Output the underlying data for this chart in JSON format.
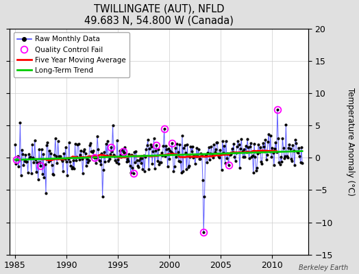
{
  "title": "TWILLINGATE (AUT), NFLD",
  "subtitle": "49.683 N, 54.800 W (Canada)",
  "ylabel": "Temperature Anomaly (°C)",
  "watermark": "Berkeley Earth",
  "xlim": [
    1984.5,
    2013.5
  ],
  "ylim": [
    -15,
    20
  ],
  "yticks": [
    -15,
    -10,
    -5,
    0,
    5,
    10,
    15,
    20
  ],
  "xticks": [
    1985,
    1990,
    1995,
    2000,
    2005,
    2010
  ],
  "bg_color": "#e0e0e0",
  "plot_bg_color": "#ffffff",
  "raw_color": "#4444ff",
  "moving_avg_color": "#ff0000",
  "trend_color": "#00cc00",
  "qc_fail_color": "#ff00ff",
  "start_year": 1985,
  "end_year": 2012
}
